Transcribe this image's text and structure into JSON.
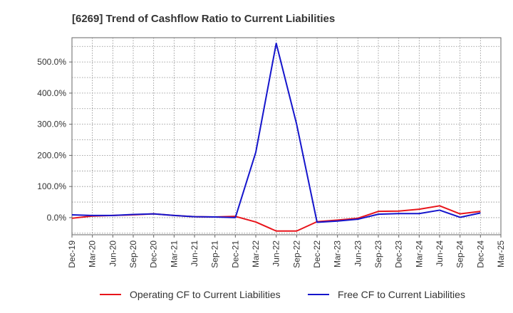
{
  "chart_data": {
    "type": "line",
    "title": "[6269]  Trend of Cashflow Ratio to Current Liabilities",
    "xlabel": "",
    "ylabel": "",
    "categories": [
      "Dec-19",
      "Mar-20",
      "Jun-20",
      "Sep-20",
      "Dec-20",
      "Mar-21",
      "Jun-21",
      "Sep-21",
      "Dec-21",
      "Mar-22",
      "Jun-22",
      "Sep-22",
      "Dec-22",
      "Mar-23",
      "Jun-23",
      "Sep-23",
      "Dec-23",
      "Mar-24",
      "Jun-24",
      "Sep-24",
      "Dec-24",
      "Mar-25"
    ],
    "y_ticks": [
      0,
      100,
      200,
      300,
      400,
      500
    ],
    "y_tick_labels": [
      "0.0%",
      "100.0%",
      "200.0%",
      "300.0%",
      "400.0%",
      "500.0%"
    ],
    "ylim": [
      -55,
      578
    ],
    "grid": true,
    "legend_position": "bottom",
    "series": [
      {
        "name": "Operating CF to Current Liabilities",
        "color": "#e8141b",
        "values": [
          -2,
          5,
          7,
          9,
          12,
          7,
          3,
          2,
          4,
          -14,
          -43,
          -43,
          -13,
          -8,
          -2,
          20,
          21,
          27,
          38,
          12,
          20,
          null
        ]
      },
      {
        "name": "Free CF to Current Liabilities",
        "color": "#1515cc",
        "values": [
          9,
          7,
          7,
          10,
          12,
          7,
          3,
          2,
          0,
          210,
          560,
          300,
          -15,
          -11,
          -5,
          11,
          13,
          13,
          24,
          1,
          15,
          null
        ]
      }
    ]
  }
}
